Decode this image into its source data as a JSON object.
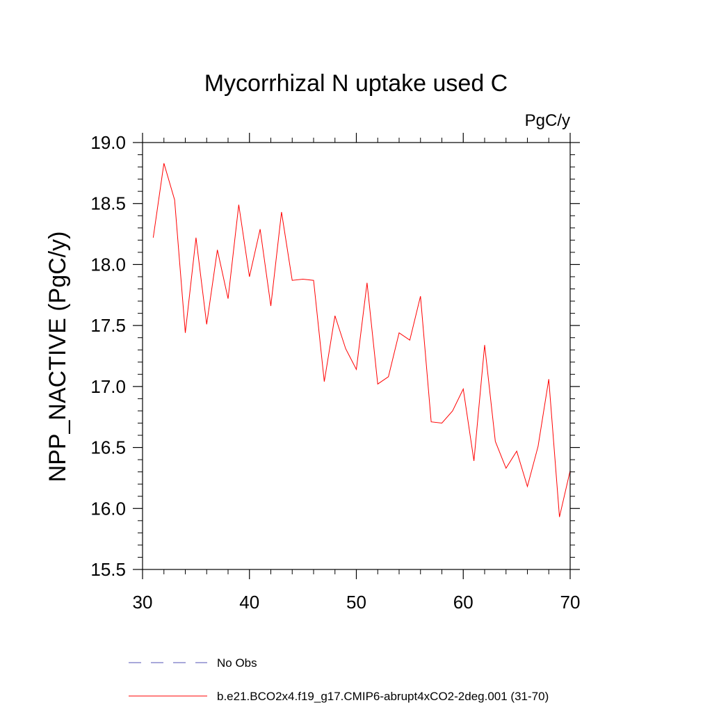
{
  "chart_data": {
    "type": "line",
    "title": "Mycorrhizal N uptake used C",
    "units_label": "PgC/y",
    "xlabel": "",
    "ylabel": "NPP_NACTIVE  (PgC/y)",
    "xlim": [
      30,
      70
    ],
    "ylim": [
      15.5,
      19.0
    ],
    "x_ticks": [
      30,
      40,
      50,
      60,
      70
    ],
    "x_tick_labels": [
      "30",
      "40",
      "50",
      "60",
      "70"
    ],
    "y_ticks": [
      15.5,
      16.0,
      16.5,
      17.0,
      17.5,
      18.0,
      18.5,
      19.0
    ],
    "y_tick_labels": [
      "15.5",
      "16.0",
      "16.5",
      "17.0",
      "17.5",
      "18.0",
      "18.5",
      "19.0"
    ],
    "grid": false,
    "legend_position": "bottom",
    "series": [
      {
        "name": "b.e21.BCO2x4.f19_g17.CMIP6-abrupt4xCO2-2deg.001 (31-70)",
        "color": "#ff0000",
        "style": "solid",
        "x": [
          31,
          32,
          33,
          34,
          35,
          36,
          37,
          38,
          39,
          40,
          41,
          42,
          43,
          44,
          45,
          46,
          47,
          48,
          49,
          50,
          51,
          52,
          53,
          54,
          55,
          56,
          57,
          58,
          59,
          60,
          61,
          62,
          63,
          64,
          65,
          66,
          67,
          68,
          69,
          70
        ],
        "values": [
          18.22,
          18.83,
          18.53,
          17.44,
          18.22,
          17.51,
          18.12,
          17.72,
          18.49,
          17.9,
          18.29,
          17.66,
          18.43,
          17.87,
          17.88,
          17.87,
          17.04,
          17.58,
          17.31,
          17.14,
          17.85,
          17.02,
          17.08,
          17.44,
          17.38,
          17.74,
          16.71,
          16.7,
          16.8,
          16.98,
          16.39,
          17.34,
          16.55,
          16.33,
          16.47,
          16.18,
          16.51,
          17.06,
          15.93,
          16.31
        ]
      },
      {
        "name": "No Obs",
        "color": "#5050b4",
        "style": "dashed",
        "x": [],
        "values": []
      }
    ]
  }
}
